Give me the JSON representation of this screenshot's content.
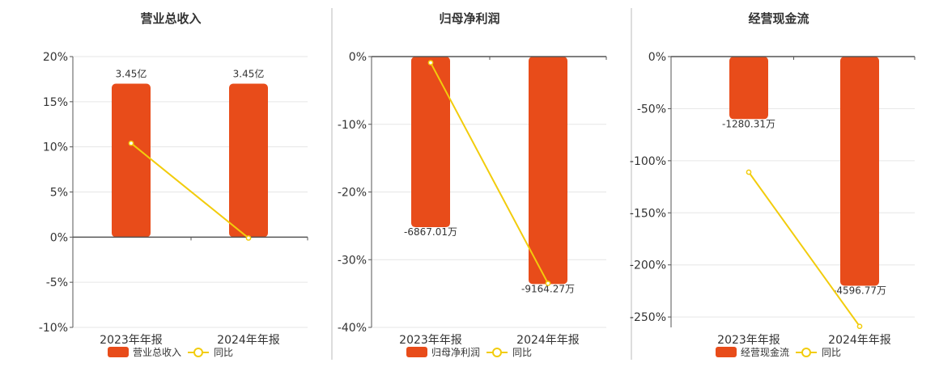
{
  "colors": {
    "bar": "#e84c1a",
    "line": "#f2cc0c",
    "axis": "#555555",
    "grid": "#e6e6e6",
    "divider": "#bbbbbb",
    "text": "#333333"
  },
  "legend": {
    "line_label": "同比"
  },
  "chart_data": [
    {
      "type": "bar",
      "title": "营业总收入",
      "categories": [
        "2023年年报",
        "2024年年报"
      ],
      "ylim": [
        -10,
        20
      ],
      "yticks": [
        20,
        15,
        10,
        5,
        0,
        -5,
        -10
      ],
      "ytick_labels": [
        "20%",
        "15%",
        "10%",
        "5%",
        "0%",
        "-5%",
        "-10%"
      ],
      "series": [
        {
          "name": "营业总收入",
          "kind": "bar",
          "values": [
            17.0,
            17.0
          ],
          "labels": [
            "3.45亿",
            "3.45亿"
          ]
        },
        {
          "name": "同比",
          "kind": "line",
          "values": [
            10.4,
            -0.1
          ]
        }
      ],
      "grid": true,
      "legend_position": "bottom"
    },
    {
      "type": "bar",
      "title": "归母净利润",
      "categories": [
        "2023年年报",
        "2024年年报"
      ],
      "ylim": [
        -40,
        0
      ],
      "yticks": [
        0,
        -10,
        -20,
        -30,
        -40
      ],
      "ytick_labels": [
        "0%",
        "-10%",
        "-20%",
        "-30%",
        "-40%"
      ],
      "series": [
        {
          "name": "归母净利润",
          "kind": "bar",
          "values": [
            -25.2,
            -33.6
          ],
          "labels": [
            "-6867.01万",
            "-9164.27万"
          ]
        },
        {
          "name": "同比",
          "kind": "line",
          "values": [
            -0.9,
            -33.5
          ]
        }
      ],
      "grid": true,
      "legend_position": "bottom"
    },
    {
      "type": "bar",
      "title": "经营现金流",
      "categories": [
        "2023年年报",
        "2024年年报"
      ],
      "ylim": [
        -250,
        0
      ],
      "yticks": [
        0,
        -50,
        -100,
        -150,
        -200,
        -250
      ],
      "ytick_labels": [
        "0%",
        "-50%",
        "-100%",
        "-150%",
        "-200%",
        "-250%"
      ],
      "ylim_draw": [
        -260,
        0
      ],
      "series": [
        {
          "name": "经营现金流",
          "kind": "bar",
          "values": [
            -60,
            -220
          ],
          "labels": [
            "-1280.31万",
            "-4596.77万"
          ]
        },
        {
          "name": "同比",
          "kind": "line",
          "values": [
            -111,
            -259
          ]
        }
      ],
      "grid": true,
      "legend_position": "bottom"
    }
  ]
}
